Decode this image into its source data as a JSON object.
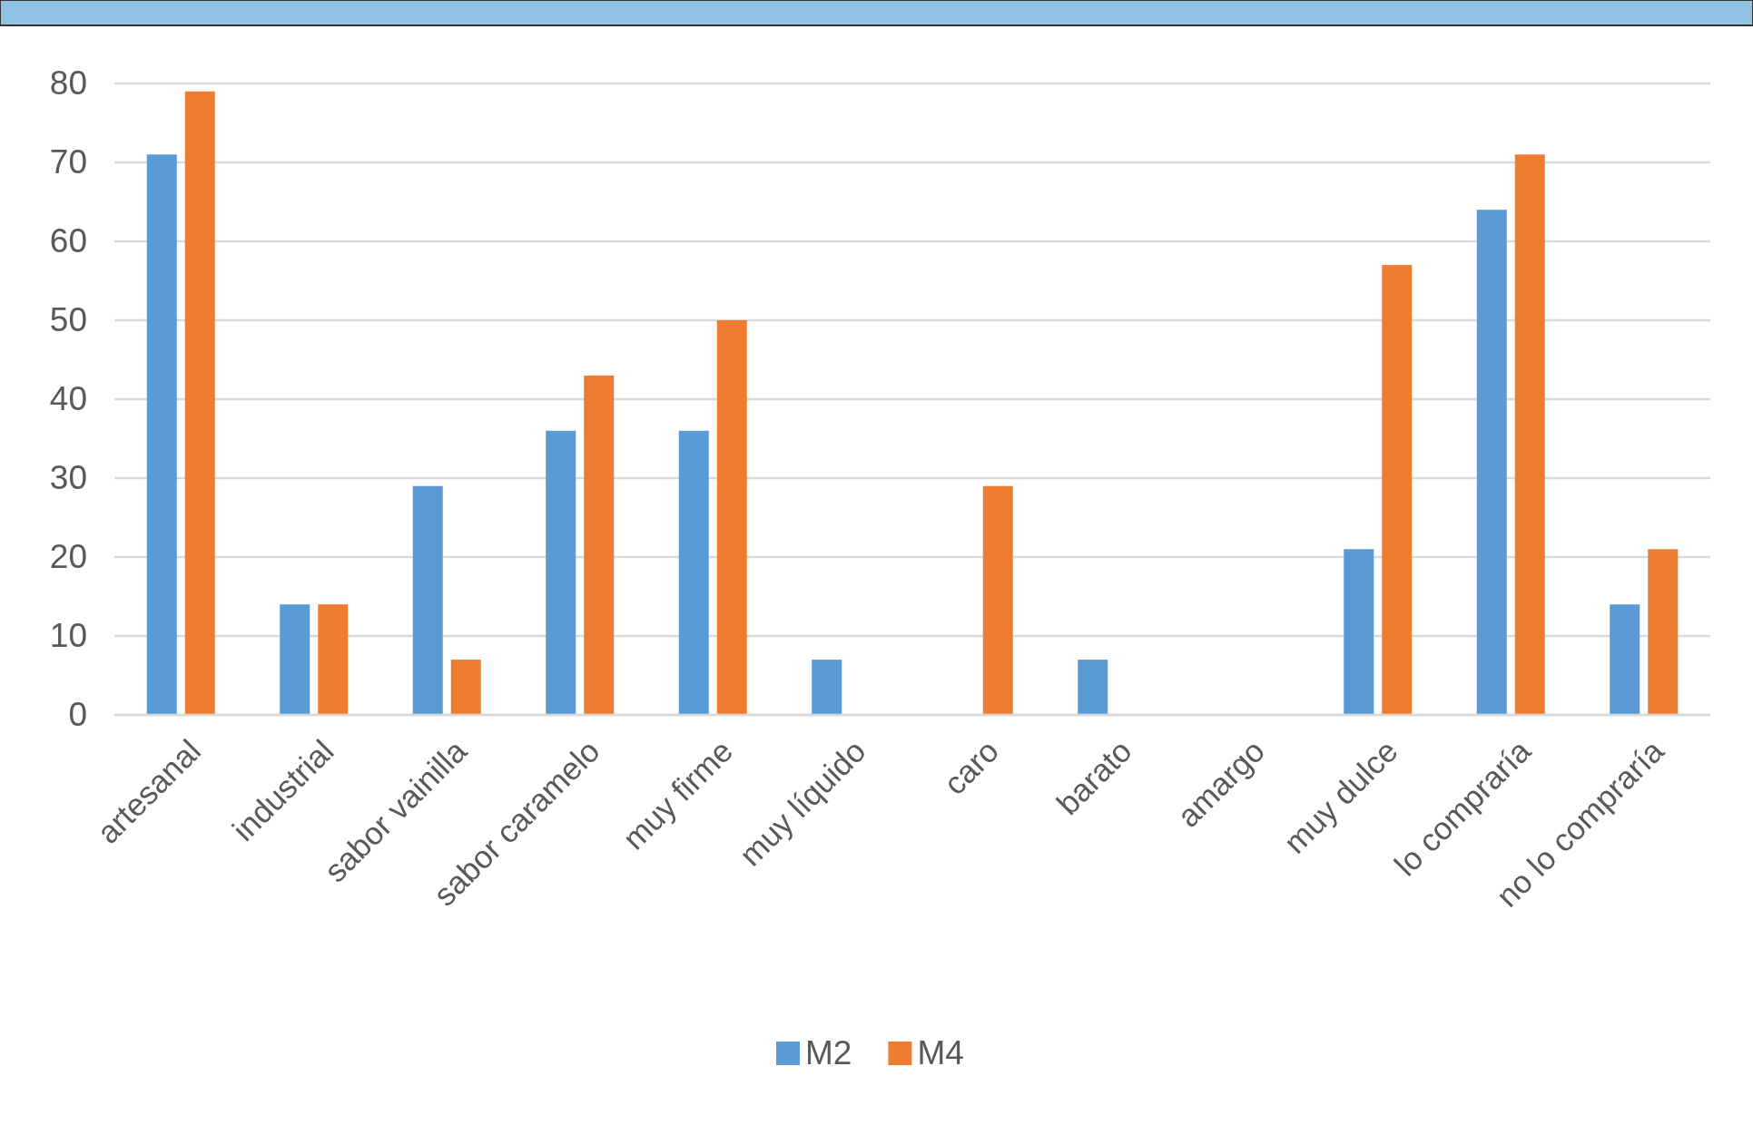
{
  "chart_data": {
    "type": "bar",
    "categories": [
      "artesanal",
      "industrial",
      "sabor vainilla",
      "sabor caramelo",
      "muy firme",
      "muy líquido",
      "caro",
      "barato",
      "amargo",
      "muy dulce",
      "lo compraría",
      "no lo compraría"
    ],
    "series": [
      {
        "name": "M2",
        "color": "#5b9bd5",
        "values": [
          71,
          14,
          29,
          36,
          36,
          7,
          0,
          7,
          0,
          21,
          64,
          14
        ]
      },
      {
        "name": "M4",
        "color": "#ed7d31",
        "values": [
          79,
          14,
          7,
          43,
          50,
          0,
          29,
          0,
          0,
          57,
          71,
          21
        ]
      }
    ],
    "ylim": [
      0,
      80
    ],
    "yticks": [
      0,
      10,
      20,
      30,
      40,
      50,
      60,
      70,
      80
    ],
    "grid": "y",
    "legend": "bottom"
  }
}
